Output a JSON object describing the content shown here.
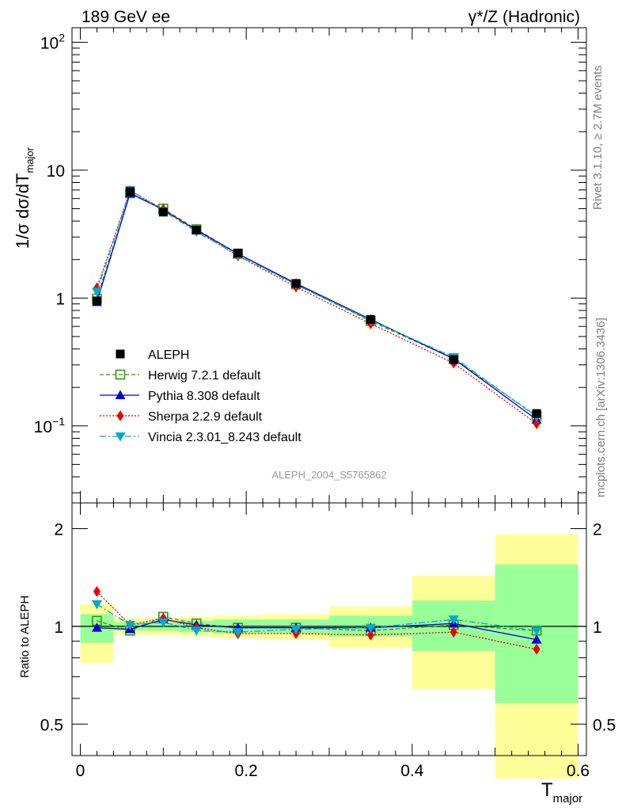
{
  "header": {
    "left": "189 GeV ee",
    "right": "γ*/Z (Hadronic)"
  },
  "side_labels": {
    "rivet": "Rivet 3.1.10, ≥ 2.7M events",
    "mcplots": "mcplots.cern.ch [arXiv:1306.3436]"
  },
  "analysis_tag": "ALEPH_2004_S5765862",
  "axes": {
    "main_ylabel": "1/σ  dσ/dT",
    "main_ylabel_sub": "major",
    "ratio_ylabel": "Ratio to ALEPH",
    "xlabel": "T",
    "xlabel_sub": "major"
  },
  "ticks": {
    "main_y": [
      {
        "value": 100,
        "label": "10",
        "sup": "2"
      },
      {
        "value": 10,
        "label": "10",
        "sup": ""
      },
      {
        "value": 1,
        "label": "1",
        "sup": ""
      },
      {
        "value": 0.1,
        "label": "10",
        "sup": "−1"
      }
    ],
    "ratio_y": [
      {
        "value": 2,
        "label": "2"
      },
      {
        "value": 1,
        "label": "1"
      },
      {
        "value": 0.5,
        "label": "0.5"
      }
    ],
    "x": [
      {
        "value": 0,
        "label": "0"
      },
      {
        "value": 0.2,
        "label": "0.2"
      },
      {
        "value": 0.4,
        "label": "0.4"
      },
      {
        "value": 0.6,
        "label": "0.6"
      }
    ]
  },
  "chart_data": {
    "type": "line",
    "x_range": [
      -0.01,
      0.61
    ],
    "main_ylim": [
      0.025,
      130
    ],
    "main_yscale": "log",
    "ratio_ylim": [
      0.4,
      2.4
    ],
    "ratio_yscale": "log",
    "legend_position": "bottom-left",
    "x": [
      0.02,
      0.06,
      0.1,
      0.14,
      0.19,
      0.26,
      0.35,
      0.45,
      0.55
    ],
    "bin_edges": [
      0.0,
      0.04,
      0.08,
      0.12,
      0.16,
      0.22,
      0.3,
      0.4,
      0.5,
      0.6
    ],
    "band_yellow": [
      [
        0.77,
        1.17
      ],
      [
        0.94,
        1.06
      ],
      [
        0.94,
        1.06
      ],
      [
        0.93,
        1.07
      ],
      [
        0.92,
        1.08
      ],
      [
        0.91,
        1.09
      ],
      [
        0.86,
        1.15
      ],
      [
        0.64,
        1.43
      ],
      [
        0.34,
        1.92
      ]
    ],
    "band_green": [
      [
        0.89,
        1.09
      ],
      [
        0.97,
        1.03
      ],
      [
        0.97,
        1.03
      ],
      [
        0.96,
        1.04
      ],
      [
        0.95,
        1.05
      ],
      [
        0.95,
        1.05
      ],
      [
        0.93,
        1.08
      ],
      [
        0.84,
        1.2
      ],
      [
        0.58,
        1.55
      ]
    ],
    "data": {
      "name": "ALEPH",
      "color": "#000000",
      "values": [
        0.95,
        6.8,
        4.7,
        3.4,
        2.25,
        1.3,
        0.68,
        0.33,
        0.125
      ]
    },
    "series": [
      {
        "name": "Herwig 7.2.1 default",
        "color": "#339900",
        "marker": "open-square",
        "dash": "5,3",
        "values": [
          0.99,
          6.6,
          5.0,
          3.45,
          2.22,
          1.28,
          0.66,
          0.335,
          0.12
        ],
        "ratio": [
          1.04,
          0.97,
          1.07,
          1.02,
          0.99,
          0.99,
          0.97,
          1.01,
          0.97
        ]
      },
      {
        "name": "Pythia 8.308 default",
        "color": "#0000dd",
        "marker": "triangle-up",
        "dash": "",
        "values": [
          0.93,
          6.6,
          4.9,
          3.4,
          2.22,
          1.3,
          0.68,
          0.335,
          0.112
        ],
        "ratio": [
          0.99,
          0.98,
          1.05,
          1.01,
          0.99,
          0.99,
          0.99,
          1.02,
          0.91
        ]
      },
      {
        "name": "Sherpa 2.2.9 default",
        "color": "#ee0000",
        "marker": "diamond",
        "dash": "2,2",
        "values": [
          1.2,
          6.9,
          4.95,
          3.35,
          2.14,
          1.22,
          0.63,
          0.31,
          0.104
        ],
        "ratio": [
          1.28,
          1.01,
          1.06,
          0.99,
          0.95,
          0.95,
          0.94,
          0.96,
          0.85
        ]
      },
      {
        "name": "Vincia 2.3.01_8.243 default",
        "color": "#00aacc",
        "marker": "triangle-down",
        "dash": "8,3,2,3",
        "values": [
          1.12,
          7.0,
          4.8,
          3.3,
          2.16,
          1.27,
          0.67,
          0.345,
          0.118
        ],
        "ratio": [
          1.17,
          1.01,
          1.03,
          0.97,
          0.96,
          0.98,
          0.99,
          1.05,
          0.97
        ]
      }
    ]
  }
}
